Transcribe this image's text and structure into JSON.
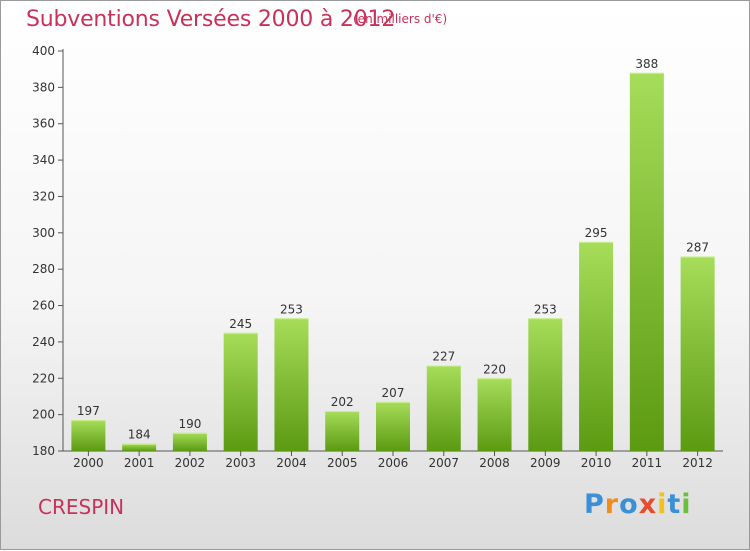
{
  "title": "Subventions Versées 2000 à 2012",
  "subtitle": "(en milliers d'€)",
  "commune": "CRESPIN",
  "logo": {
    "text": "Proxiti",
    "colors": [
      "#3a8fd8",
      "#f08c1a",
      "#3a8fd8",
      "#e84c2c",
      "#f0c21a",
      "#3a8fd8",
      "#6cbf3a"
    ]
  },
  "colors": {
    "title": "#c8325a",
    "bar_light": "#a6dd5a",
    "bar_dark": "#5c9a12",
    "grid": "#c0c0c0"
  },
  "chart_data": {
    "type": "bar",
    "title": "Subventions Versées 2000 à 2012",
    "subtitle": "(en milliers d'€)",
    "categories": [
      "2000",
      "2001",
      "2002",
      "2003",
      "2004",
      "2005",
      "2006",
      "2007",
      "2008",
      "2009",
      "2010",
      "2011",
      "2012"
    ],
    "values": [
      197,
      184,
      190,
      245,
      253,
      202,
      207,
      227,
      220,
      253,
      295,
      388,
      287
    ],
    "ylim": [
      180,
      400
    ],
    "yticks": [
      180,
      200,
      220,
      240,
      260,
      280,
      300,
      320,
      340,
      360,
      380,
      400
    ],
    "grid": false,
    "legend": "none"
  }
}
